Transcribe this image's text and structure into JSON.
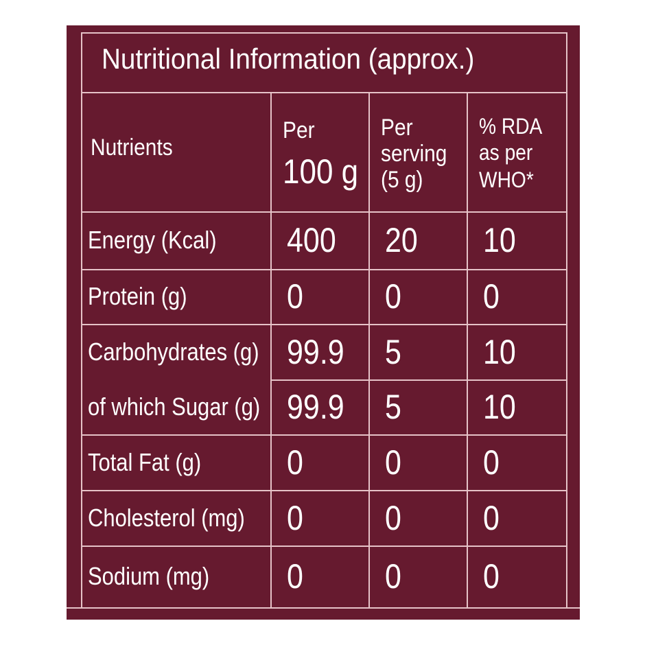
{
  "header": {
    "title": "Nutritional Information (approx.)"
  },
  "table": {
    "columns": [
      [
        "Nutrients"
      ],
      [
        "Per",
        "100 g"
      ],
      [
        "Per",
        "serving",
        "(5 g)"
      ],
      [
        "% RDA",
        "as per",
        "WHO*"
      ]
    ],
    "rows": [
      [
        "Energy (Kcal)",
        400,
        20,
        10
      ],
      [
        "Protein (g)",
        0,
        0,
        0
      ],
      [
        "Carbohydrates (g)",
        99.9,
        5,
        10
      ],
      [
        "of which Sugar (g)",
        99.9,
        5,
        10
      ],
      [
        "Total Fat (g)",
        0,
        0,
        0
      ],
      [
        "Cholesterol (mg)",
        0,
        0,
        0
      ],
      [
        "Sodium (mg)",
        0,
        0,
        0
      ]
    ]
  }
}
